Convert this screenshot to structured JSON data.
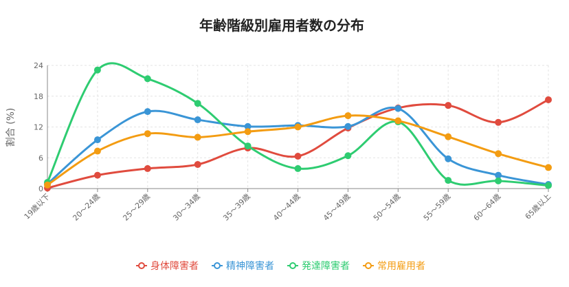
{
  "chart_data": {
    "type": "line",
    "title": "年齢階級別雇用者数の分布",
    "xlabel": "",
    "ylabel": "割合 (%)",
    "ylim": [
      0,
      24
    ],
    "yticks": [
      0,
      6,
      12,
      18,
      24
    ],
    "grid": true,
    "legend_position": "bottom-center",
    "categories": [
      "19歳以下",
      "20～24歳",
      "25～29歳",
      "30～34歳",
      "35～39歳",
      "40～44歳",
      "45～49歳",
      "50～54歳",
      "55～59歳",
      "60～64歳",
      "65歳以上"
    ],
    "series": [
      {
        "name": "身体障害者",
        "color": "#e04b3e",
        "values": [
          0.1,
          2.6,
          3.9,
          4.7,
          7.9,
          6.3,
          11.8,
          15.7,
          16.2,
          12.9,
          17.3
        ]
      },
      {
        "name": "精神障害者",
        "color": "#3a95d6",
        "values": [
          0.9,
          9.5,
          15.0,
          13.4,
          12.1,
          12.3,
          12.1,
          15.6,
          5.8,
          2.6,
          0.8
        ]
      },
      {
        "name": "発達障害者",
        "color": "#2ecc71",
        "values": [
          1.2,
          23.1,
          21.4,
          16.6,
          8.3,
          3.9,
          6.4,
          13.0,
          1.6,
          1.5,
          0.6
        ]
      },
      {
        "name": "常用雇用者",
        "color": "#f39c12",
        "values": [
          0.7,
          7.3,
          10.7,
          10.0,
          11.1,
          12.0,
          14.2,
          13.2,
          10.1,
          6.8,
          4.1
        ]
      }
    ]
  }
}
